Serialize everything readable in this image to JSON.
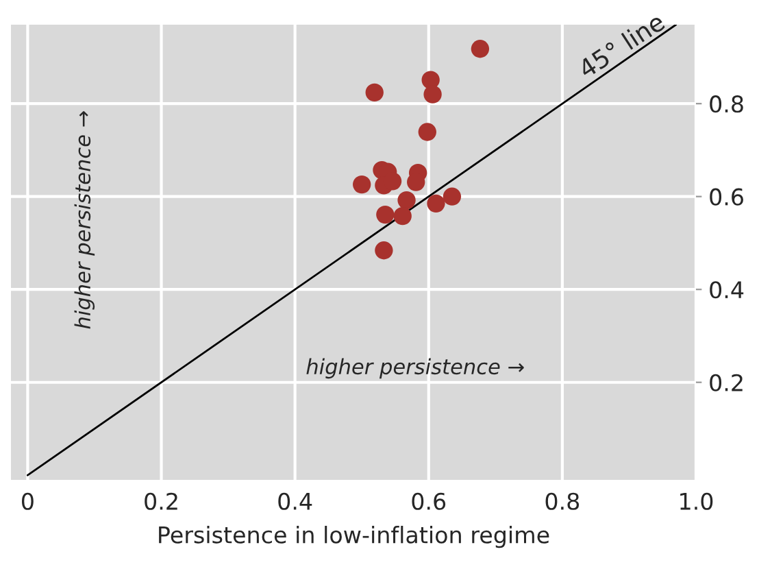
{
  "chart_data": {
    "type": "scatter",
    "xlabel": "Persistence in low-inflation regime",
    "x": [
      0.677,
      0.603,
      0.606,
      0.519,
      0.598,
      0.53,
      0.539,
      0.584,
      0.5,
      0.533,
      0.546,
      0.581,
      0.567,
      0.635,
      0.611,
      0.535,
      0.561,
      0.533
    ],
    "series": [
      {
        "color": "#a8322d",
        "marker": "circle",
        "values": [
          0.918,
          0.851,
          0.82,
          0.824,
          0.739,
          0.657,
          0.653,
          0.651,
          0.626,
          0.624,
          0.633,
          0.631,
          0.592,
          0.6,
          0.585,
          0.561,
          0.558,
          0.484
        ]
      },
      {
        "type": "line",
        "color": "#000000",
        "x": [
          0,
          0.97
        ],
        "values": [
          0,
          0.97
        ]
      }
    ],
    "xlim": [
      -0.025,
      1.0
    ],
    "ylim": [
      -0.01,
      0.97
    ],
    "xticks": [
      0,
      {
        "value": 0.2,
        "label": "0.2"
      },
      {
        "value": 0.4,
        "label": "0.4"
      },
      {
        "value": 0.6,
        "label": "0.6"
      },
      {
        "value": 0.8,
        "label": "0.8"
      },
      {
        "value": 1.0,
        "label": "1.0"
      }
    ],
    "yticks": [
      {
        "value": 0.2,
        "label": "0.2"
      },
      {
        "value": 0.4,
        "label": "0.4"
      },
      {
        "value": 0.6,
        "label": "0.6"
      },
      {
        "value": 0.8,
        "label": "0.8"
      }
    ],
    "grid": true,
    "annotations": [
      {
        "text": "45° line",
        "x": 0.9,
        "y": 0.9
      },
      "higher persistence →",
      "higher persistence →"
    ]
  }
}
